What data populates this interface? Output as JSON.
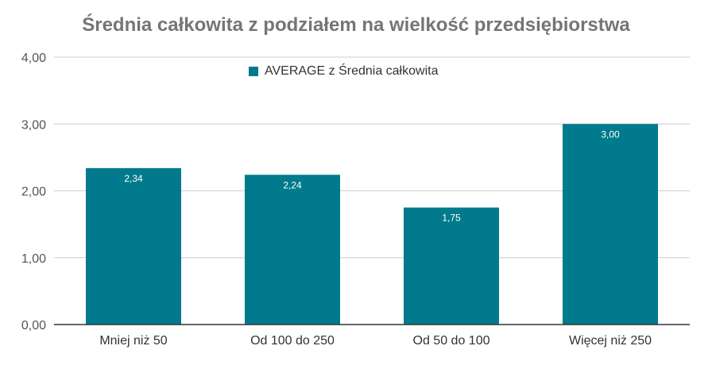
{
  "chart_data": {
    "type": "bar",
    "title": "Średnia całkowita z podziałem na wielkość przedsiębiorstwa",
    "categories": [
      "Mniej niż 50",
      "Od 100 do 250",
      "Od 50 do 100",
      "Więcej niż 250"
    ],
    "series": [
      {
        "name": "AVERAGE z Średnia całkowita",
        "values": [
          2.34,
          2.24,
          1.75,
          3.0
        ]
      }
    ],
    "data_labels": [
      "2,34",
      "2,24",
      "1,75",
      "3,00"
    ],
    "y_ticks": [
      0,
      1,
      2,
      3,
      4
    ],
    "y_tick_labels": [
      "0,00",
      "1,00",
      "2,00",
      "3,00",
      "4,00"
    ],
    "ylim": [
      0,
      4
    ],
    "xlabel": "",
    "ylabel": "",
    "grid": true,
    "legend_position": "top",
    "bar_color": "#007a8c",
    "grid_color": "#cccccc",
    "axis_color": "#333333"
  }
}
